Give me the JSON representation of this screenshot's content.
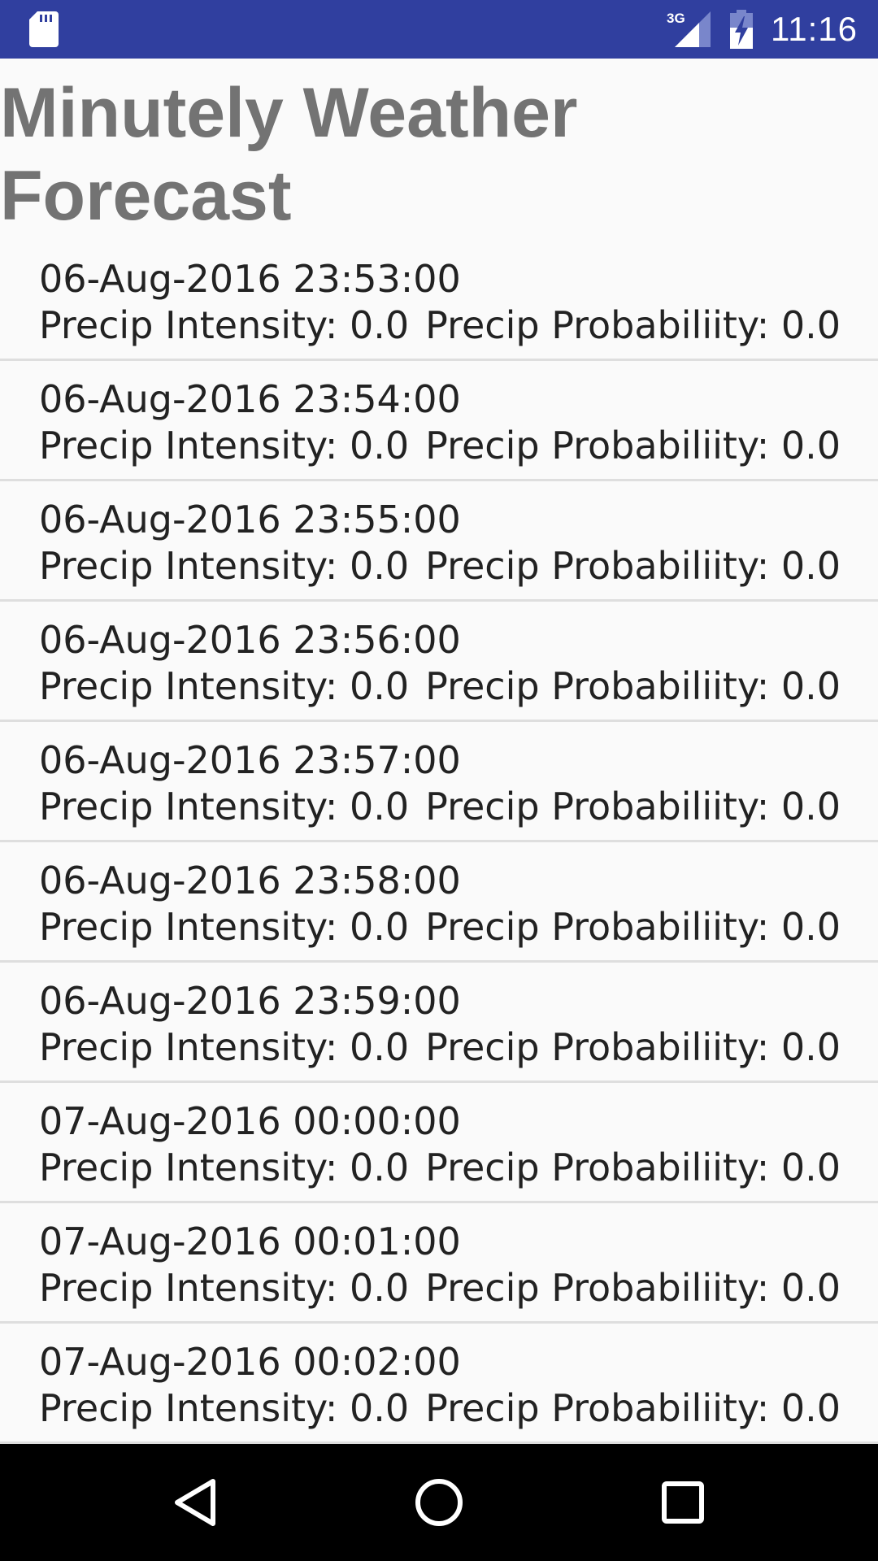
{
  "status_bar": {
    "network": "3G",
    "time": "11:16",
    "icons": [
      "sd-card-icon",
      "signal-icon",
      "battery-charging-icon"
    ]
  },
  "page": {
    "title": "Minutely Weather Forecast"
  },
  "forecast": [
    {
      "datetime": "06-Aug-2016 23:53:00",
      "intensity": "Precip Intensity: 0.0",
      "probability": "Precip Probabiliity: 0.0"
    },
    {
      "datetime": "06-Aug-2016 23:54:00",
      "intensity": "Precip Intensity: 0.0",
      "probability": "Precip Probabiliity: 0.0"
    },
    {
      "datetime": "06-Aug-2016 23:55:00",
      "intensity": "Precip Intensity: 0.0",
      "probability": "Precip Probabiliity: 0.0"
    },
    {
      "datetime": "06-Aug-2016 23:56:00",
      "intensity": "Precip Intensity: 0.0",
      "probability": "Precip Probabiliity: 0.0"
    },
    {
      "datetime": "06-Aug-2016 23:57:00",
      "intensity": "Precip Intensity: 0.0",
      "probability": "Precip Probabiliity: 0.0"
    },
    {
      "datetime": "06-Aug-2016 23:58:00",
      "intensity": "Precip Intensity: 0.0",
      "probability": "Precip Probabiliity: 0.0"
    },
    {
      "datetime": "06-Aug-2016 23:59:00",
      "intensity": "Precip Intensity: 0.0",
      "probability": "Precip Probabiliity: 0.0"
    },
    {
      "datetime": "07-Aug-2016 00:00:00",
      "intensity": "Precip Intensity: 0.0",
      "probability": "Precip Probabiliity: 0.0"
    },
    {
      "datetime": "07-Aug-2016 00:01:00",
      "intensity": "Precip Intensity: 0.0",
      "probability": "Precip Probabiliity: 0.0"
    },
    {
      "datetime": "07-Aug-2016 00:02:00",
      "intensity": "Precip Intensity: 0.0",
      "probability": "Precip Probabiliity: 0.0"
    }
  ],
  "nav_bar": {
    "icons": [
      "back-icon",
      "home-icon",
      "recents-icon"
    ]
  },
  "colors": {
    "status_bar": "#303f9f",
    "title": "#737373",
    "background": "#fafafa",
    "divider": "#dedede",
    "nav_bar": "#000000"
  }
}
